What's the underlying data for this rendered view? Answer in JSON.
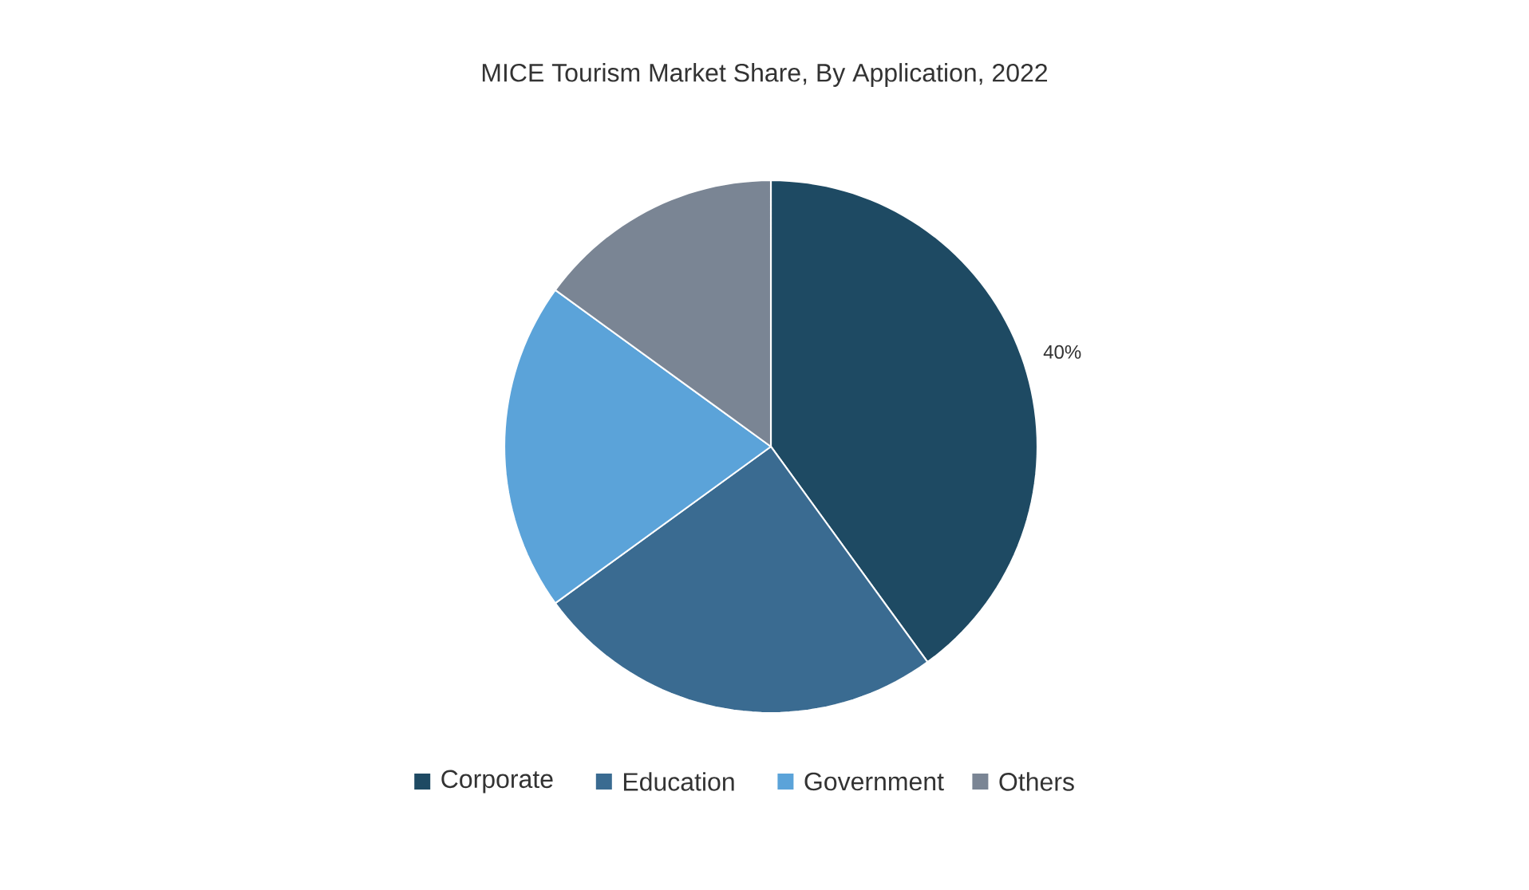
{
  "chart_data": {
    "type": "pie",
    "title": "MICE Tourism Market Share, By Application, 2022",
    "categories": [
      "Corporate",
      "Education",
      "Government",
      "Others"
    ],
    "values": [
      40,
      25,
      20,
      15
    ],
    "colors": [
      "#1e4a63",
      "#3a6b91",
      "#5ba3d9",
      "#7a8594"
    ],
    "value_labels": [
      "40%",
      null,
      null,
      null
    ],
    "legend": "bottom"
  }
}
